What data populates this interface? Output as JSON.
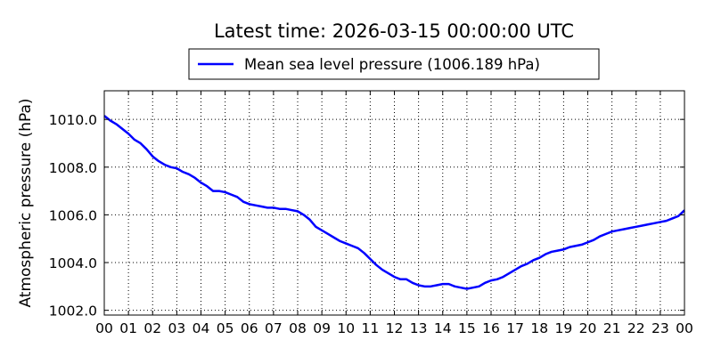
{
  "chart_data": {
    "type": "line",
    "title": "Latest time: 2026-03-15 00:00:00 UTC",
    "xlabel": "",
    "ylabel": "Atmospheric pressure (hPa)",
    "xlim": [
      0,
      24
    ],
    "ylim": [
      1001.8,
      1011.2
    ],
    "grid": true,
    "legend_position": "top-center",
    "x_tick_values": [
      0,
      1,
      2,
      3,
      4,
      5,
      6,
      7,
      8,
      9,
      10,
      11,
      12,
      13,
      14,
      15,
      16,
      17,
      18,
      19,
      20,
      21,
      22,
      23,
      24
    ],
    "x_tick_labels": [
      "00",
      "01",
      "02",
      "03",
      "04",
      "05",
      "06",
      "07",
      "08",
      "09",
      "10",
      "11",
      "12",
      "13",
      "14",
      "15",
      "16",
      "17",
      "18",
      "19",
      "20",
      "21",
      "22",
      "23",
      "00"
    ],
    "y_tick_values": [
      1002.0,
      1004.0,
      1006.0,
      1008.0,
      1010.0
    ],
    "y_tick_labels": [
      "1002.0",
      "1004.0",
      "1006.0",
      "1008.0",
      "1010.0"
    ],
    "series": [
      {
        "name": "Mean sea level pressure (1006.189 hPa)",
        "color": "#0000ff",
        "x": [
          0,
          0.25,
          0.5,
          0.75,
          1,
          1.25,
          1.5,
          1.75,
          2,
          2.25,
          2.5,
          2.75,
          3,
          3.25,
          3.5,
          3.75,
          4,
          4.25,
          4.5,
          4.75,
          5,
          5.25,
          5.5,
          5.75,
          6,
          6.25,
          6.5,
          6.75,
          7,
          7.25,
          7.5,
          7.75,
          8,
          8.25,
          8.5,
          8.75,
          9,
          9.25,
          9.5,
          9.75,
          10,
          10.25,
          10.5,
          10.75,
          11,
          11.25,
          11.5,
          11.75,
          12,
          12.25,
          12.5,
          12.75,
          13,
          13.25,
          13.5,
          13.75,
          14,
          14.25,
          14.5,
          14.75,
          15,
          15.25,
          15.5,
          15.75,
          16,
          16.25,
          16.5,
          16.75,
          17,
          17.25,
          17.5,
          17.75,
          18,
          18.25,
          18.5,
          18.75,
          19,
          19.25,
          19.5,
          19.75,
          20,
          20.25,
          20.5,
          20.75,
          21,
          21.25,
          21.5,
          21.75,
          22,
          22.25,
          22.5,
          22.75,
          23,
          23.25,
          23.5,
          23.75,
          24
        ],
        "y": [
          1010.15,
          1009.95,
          1009.8,
          1009.6,
          1009.4,
          1009.15,
          1009.0,
          1008.75,
          1008.45,
          1008.25,
          1008.1,
          1008.0,
          1007.95,
          1007.8,
          1007.7,
          1007.55,
          1007.35,
          1007.2,
          1007.0,
          1007.0,
          1006.95,
          1006.85,
          1006.75,
          1006.55,
          1006.45,
          1006.4,
          1006.35,
          1006.3,
          1006.3,
          1006.25,
          1006.25,
          1006.2,
          1006.15,
          1006.0,
          1005.8,
          1005.5,
          1005.35,
          1005.2,
          1005.05,
          1004.9,
          1004.8,
          1004.7,
          1004.6,
          1004.4,
          1004.15,
          1003.9,
          1003.7,
          1003.55,
          1003.4,
          1003.3,
          1003.3,
          1003.15,
          1003.05,
          1003.0,
          1003.0,
          1003.05,
          1003.1,
          1003.1,
          1003.0,
          1002.95,
          1002.9,
          1002.95,
          1003.0,
          1003.15,
          1003.25,
          1003.3,
          1003.4,
          1003.55,
          1003.7,
          1003.85,
          1003.95,
          1004.1,
          1004.2,
          1004.35,
          1004.45,
          1004.5,
          1004.55,
          1004.65,
          1004.7,
          1004.75,
          1004.85,
          1004.95,
          1005.1,
          1005.2,
          1005.3,
          1005.35,
          1005.4,
          1005.45,
          1005.5,
          1005.55,
          1005.6,
          1005.65,
          1005.7,
          1005.75,
          1005.85,
          1005.95,
          1006.189
        ]
      }
    ]
  }
}
